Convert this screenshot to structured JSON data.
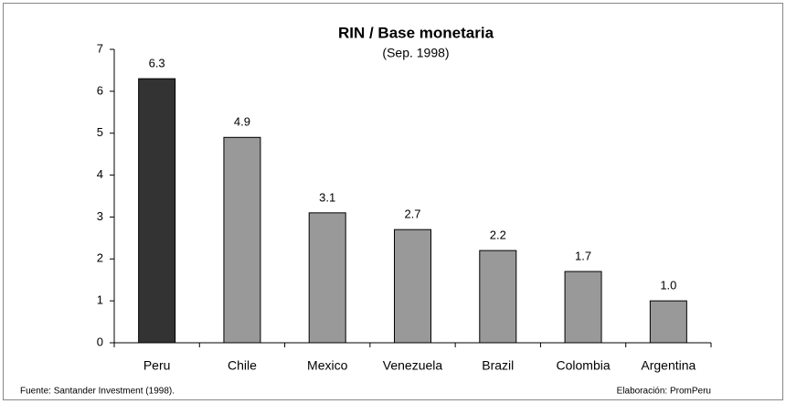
{
  "chart_data": {
    "type": "bar",
    "title": "RIN / Base monetaria",
    "subtitle": "(Sep. 1998)",
    "categories": [
      "Peru",
      "Chile",
      "Mexico",
      "Venezuela",
      "Brazil",
      "Colombia",
      "Argentina"
    ],
    "values": [
      6.3,
      4.9,
      3.1,
      2.7,
      2.2,
      1.7,
      1.0
    ],
    "value_labels": [
      "6.3",
      "4.9",
      "3.1",
      "2.7",
      "2.2",
      "1.7",
      "1.0"
    ],
    "colors": [
      "#333333",
      "#999999",
      "#999999",
      "#999999",
      "#999999",
      "#999999",
      "#999999"
    ],
    "ylim": [
      0,
      7
    ],
    "yticks": [
      0,
      1,
      2,
      3,
      4,
      5,
      6,
      7
    ],
    "grid": false,
    "source": "Fuente: Santander Investment (1998).",
    "credit": "Elaboración: PromPeru"
  }
}
